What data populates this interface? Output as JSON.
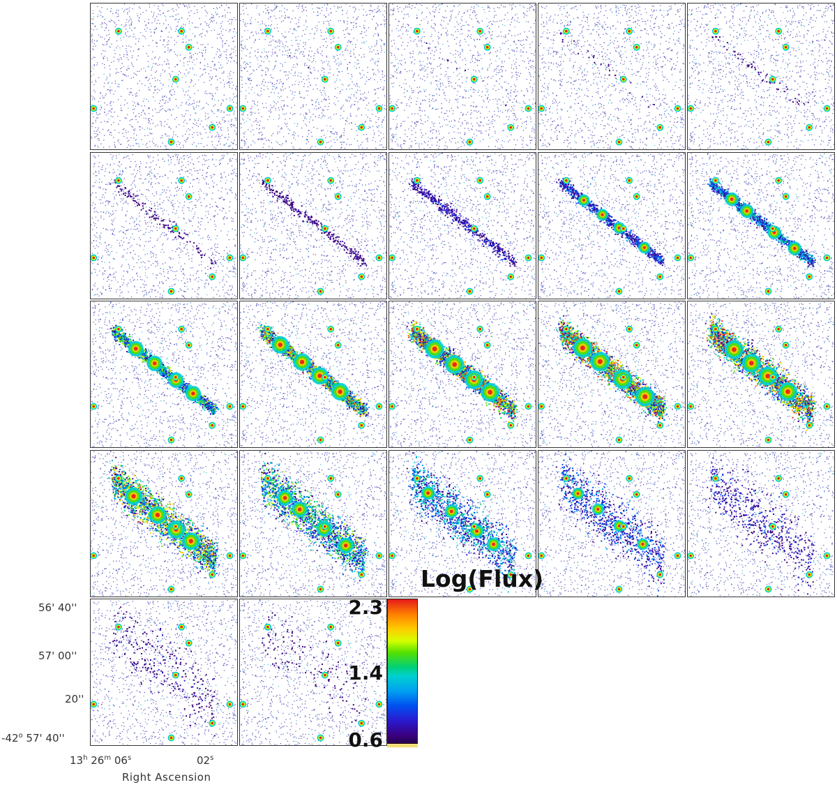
{
  "figure": {
    "panel_count": 22,
    "columns": 5,
    "colormap": [
      "#3a0080",
      "#2a1ad0",
      "#0050f0",
      "#00a0f0",
      "#00d0d0",
      "#00d07a",
      "#55e000",
      "#d6ff00",
      "#ffcc00",
      "#ff7f00",
      "#e41a1c"
    ]
  },
  "axes": {
    "dec_ticks": [
      {
        "deg": "",
        "min": "56'",
        "sec": "40''"
      },
      {
        "deg": "",
        "min": "57'",
        "sec": "00''"
      },
      {
        "deg": "",
        "min": "",
        "sec": "20''"
      },
      {
        "deg": "-42",
        "min": "57'",
        "sec": "40''"
      }
    ],
    "ra_ticks": [
      {
        "h": "13",
        "m": "26",
        "s": "06"
      },
      {
        "s": "02"
      }
    ],
    "ra_label": "Right Ascension"
  },
  "colorbar": {
    "title": "Log(Flux)",
    "ticks": [
      "2.3",
      "1.4",
      "0.6"
    ]
  }
}
